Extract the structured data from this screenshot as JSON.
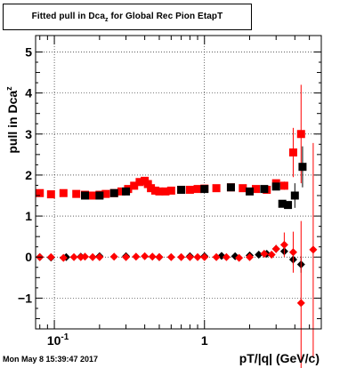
{
  "title": {
    "prefix": "Fitted pull in Dca",
    "subscript": "z",
    "suffix": " for Global Rec Pion EtapT"
  },
  "timestamp": "Mon May  8 15:39:47 2017",
  "chart_data": {
    "type": "scatter",
    "xlabel": "pT/|q| (GeV/c)",
    "ylabel_main": "pull in Dca",
    "ylabel_sub": "z",
    "x_log": true,
    "xlim": [
      0.075,
      6.0
    ],
    "ylim": [
      -1.75,
      5.4
    ],
    "grid": true,
    "x_ticks": [
      {
        "v": 0.1,
        "base": "10",
        "exp": "-1"
      },
      {
        "v": 1,
        "label": "1"
      }
    ],
    "y_ticks": [
      -1,
      0,
      1,
      2,
      3,
      4,
      5
    ],
    "colors": {
      "mean": "#000000",
      "sigma": "#ff0000"
    },
    "series": [
      {
        "role": "sigma",
        "color": "#ff0000",
        "marker": "square",
        "x": [
          0.08,
          0.095,
          0.115,
          0.14,
          0.16,
          0.18,
          0.2,
          0.22,
          0.25,
          0.28,
          0.31,
          0.34,
          0.37,
          0.4,
          0.42,
          0.44,
          0.47,
          0.5,
          0.55,
          0.6,
          0.7,
          0.8,
          0.9,
          1.0,
          1.2,
          1.5,
          1.8,
          2.2,
          2.6,
          3.0,
          3.4,
          3.9,
          4.4
        ],
        "y": [
          1.56,
          1.53,
          1.56,
          1.54,
          1.52,
          1.5,
          1.52,
          1.54,
          1.56,
          1.6,
          1.66,
          1.74,
          1.83,
          1.86,
          1.78,
          1.68,
          1.62,
          1.6,
          1.6,
          1.62,
          1.64,
          1.64,
          1.66,
          1.67,
          1.68,
          1.7,
          1.68,
          1.66,
          1.64,
          1.8,
          1.74,
          2.55,
          3.0
        ],
        "err": [
          0,
          0,
          0,
          0,
          0,
          0,
          0,
          0,
          0,
          0,
          0,
          0,
          0,
          0,
          0,
          0,
          0,
          0,
          0,
          0,
          0,
          0,
          0,
          0,
          0,
          0,
          0,
          0,
          0,
          0.08,
          0.1,
          0.6,
          1.2
        ]
      },
      {
        "role": "sigma-black",
        "color": "#000000",
        "marker": "square",
        "x": [
          0.16,
          0.2,
          0.25,
          0.3,
          0.7,
          1.0,
          1.5,
          2.0,
          2.5,
          3.0,
          3.3,
          3.6,
          4.0,
          4.5
        ],
        "y": [
          1.5,
          1.5,
          1.56,
          1.6,
          1.64,
          1.66,
          1.7,
          1.6,
          1.66,
          1.72,
          1.3,
          1.27,
          1.5,
          2.2
        ],
        "err": [
          0,
          0,
          0,
          0,
          0,
          0,
          0,
          0,
          0,
          0.08,
          0.05,
          0.05,
          0.3,
          0.5
        ]
      },
      {
        "role": "mean",
        "color": "#000000",
        "marker": "diamond",
        "x": [
          0.08,
          0.095,
          0.12,
          0.15,
          0.2,
          0.3,
          0.5,
          0.8,
          1.0,
          1.3,
          1.6,
          2.0,
          2.3,
          2.6,
          3.0,
          3.4,
          3.9,
          4.4
        ],
        "y": [
          0.0,
          -0.01,
          0.0,
          0.01,
          0.02,
          0.02,
          0.0,
          0.02,
          0.02,
          0.03,
          0.02,
          0.04,
          0.06,
          0.08,
          0.2,
          0.14,
          -0.06,
          -0.18
        ],
        "err": [
          0,
          0,
          0,
          0,
          0,
          0,
          0,
          0,
          0,
          0,
          0,
          0,
          0,
          0,
          0.05,
          0.07,
          0.12,
          0.2
        ]
      },
      {
        "role": "mean-red",
        "color": "#ff0000",
        "marker": "diamond",
        "x": [
          0.08,
          0.095,
          0.115,
          0.135,
          0.15,
          0.16,
          0.18,
          0.2,
          0.25,
          0.3,
          0.35,
          0.4,
          0.45,
          0.5,
          0.6,
          0.7,
          0.8,
          0.9,
          1.0,
          1.2,
          1.4,
          1.7,
          2.0,
          2.5,
          2.8,
          3.0,
          3.4,
          3.9,
          4.4,
          5.3
        ],
        "y": [
          0.0,
          0.0,
          -0.02,
          0.0,
          0.0,
          0.01,
          0.0,
          0.0,
          0.01,
          0.0,
          0.01,
          0.02,
          0.01,
          0.0,
          0.0,
          0.0,
          0.0,
          0.0,
          0.0,
          0.0,
          0.0,
          -0.02,
          0.0,
          0.08,
          0.06,
          0.2,
          0.3,
          0.12,
          -1.12,
          0.18
        ],
        "err": [
          0,
          0,
          0,
          0,
          0,
          0,
          0,
          0,
          0,
          0,
          0,
          0,
          0,
          0,
          0,
          0,
          0,
          0,
          0,
          0,
          0,
          0,
          0,
          0.05,
          0.05,
          0.1,
          0.3,
          0.5,
          2.0,
          2.6
        ]
      }
    ]
  }
}
